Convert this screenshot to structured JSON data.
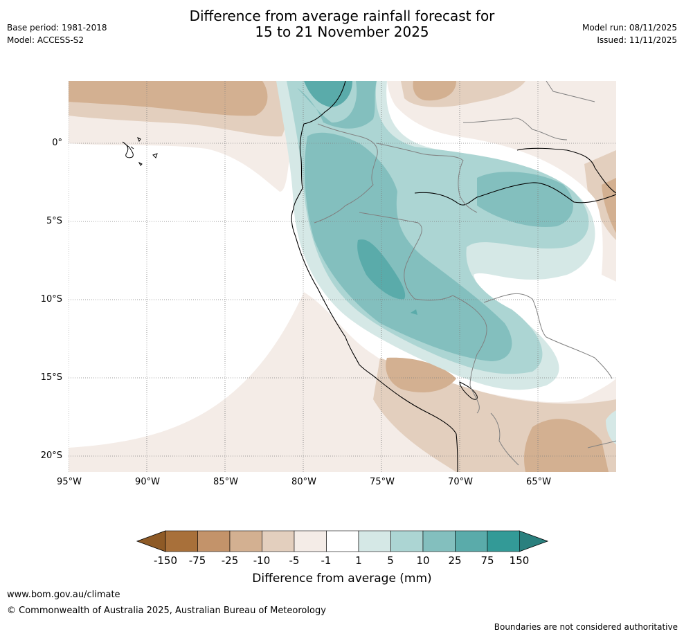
{
  "header": {
    "title_line1": "Difference from average rainfall forecast for",
    "title_line2": "15 to 21 November 2025",
    "base_period": "Base period: 1981-2018",
    "model": "Model: ACCESS-S2",
    "model_run": "Model run: 08/11/2025",
    "issued": "Issued: 11/11/2025"
  },
  "map": {
    "lat_labels": [
      "0°",
      "5°S",
      "10°S",
      "15°S",
      "20°S"
    ],
    "lon_labels": [
      "95°W",
      "90°W",
      "85°W",
      "80°W",
      "75°W",
      "70°W",
      "65°W"
    ],
    "colors": {
      "dry_150": "#a8703a",
      "dry_75": "#c3936a",
      "dry_25": "#d3b091",
      "dry_10": "#e3cfbe",
      "dry_5": "#f4ece7",
      "neutral": "#ffffff",
      "wet_1": "#d5e8e6",
      "wet_5": "#acd5d3",
      "wet_10": "#83bfbe",
      "wet_25": "#5aabaa",
      "wet_75": "#339a97",
      "wet_150": "#2a807e",
      "coast": "#000000",
      "border": "#808080",
      "grid": "#7f7f7f"
    }
  },
  "colorbar": {
    "ticks": [
      "-150",
      "-75",
      "-25",
      "-10",
      "-5",
      "-1",
      "1",
      "5",
      "10",
      "25",
      "75",
      "150"
    ],
    "colors": [
      "#a8703a",
      "#c3936a",
      "#d3b091",
      "#e3cfbe",
      "#f4ece7",
      "#ffffff",
      "#d5e8e6",
      "#acd5d3",
      "#83bfbe",
      "#5aabaa",
      "#339a97"
    ],
    "under_color": "#8e5a26",
    "over_color": "#2a807e",
    "label": "Difference from average (mm)"
  },
  "footer": {
    "url": "www.bom.gov.au/climate",
    "copyright": "© Commonwealth of Australia 2025, Australian Bureau of Meteorology",
    "disclaimer": "Boundaries are not considered authoritative"
  }
}
